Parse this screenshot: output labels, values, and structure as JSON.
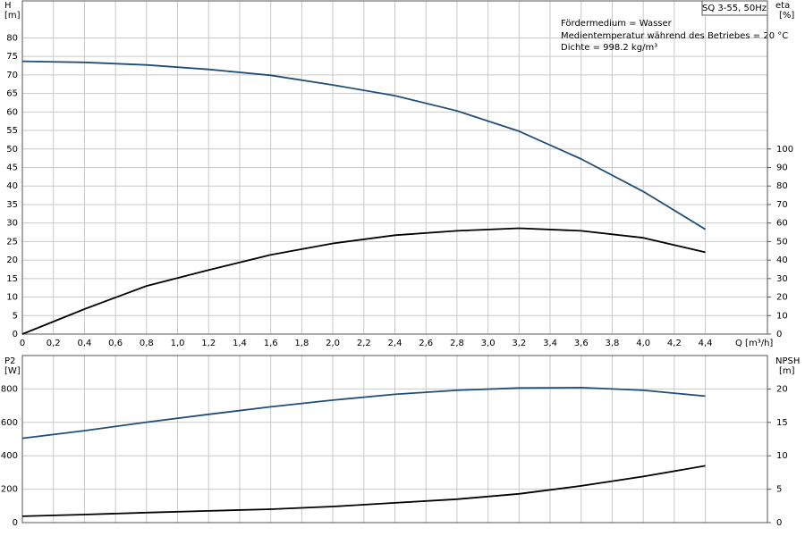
{
  "chart_data": [
    {
      "type": "line",
      "title": "SQ 3-55, 50Hz",
      "annotations": [
        "Fördermedium = Wasser",
        "Medientemperatur während des Betriebes = 20 °C",
        "Dichte = 998.2 kg/m³"
      ],
      "ylabel": "H",
      "yunit": "[m]",
      "y2label": "eta",
      "y2unit": "[%]",
      "xlabel": "Q [m³/h]",
      "x": [
        0,
        0.4,
        0.8,
        1.2,
        1.6,
        2.0,
        2.4,
        2.8,
        3.2,
        3.6,
        4.0,
        4.4
      ],
      "xlim": [
        0,
        4.8
      ],
      "xticks": [
        0,
        {
          "value": 0.2,
          "label": "0,2"
        },
        {
          "value": 0.4,
          "label": "0,4"
        },
        {
          "value": 0.6,
          "label": "0,6"
        },
        {
          "value": 0.8,
          "label": "0,8"
        },
        {
          "value": 1.0,
          "label": "1,0"
        },
        {
          "value": 1.2,
          "label": "1,2"
        },
        {
          "value": 1.4,
          "label": "1,4"
        },
        {
          "value": 1.6,
          "label": "1,6"
        },
        {
          "value": 1.8,
          "label": "1,8"
        },
        {
          "value": 2.0,
          "label": "2,0"
        },
        {
          "value": 2.2,
          "label": "2,2"
        },
        {
          "value": 2.4,
          "label": "2,4"
        },
        {
          "value": 2.6,
          "label": "2,6"
        },
        {
          "value": 2.8,
          "label": "2,8"
        },
        {
          "value": 3.0,
          "label": "3,0"
        },
        {
          "value": 3.2,
          "label": "3,2"
        },
        {
          "value": 3.4,
          "label": "3,4"
        },
        {
          "value": 3.6,
          "label": "3,6"
        },
        {
          "value": 3.8,
          "label": "3,8"
        },
        {
          "value": 4.0,
          "label": "4,0"
        },
        {
          "value": 4.2,
          "label": "4,2"
        },
        {
          "value": 4.4,
          "label": "4,4"
        }
      ],
      "ylim": [
        0,
        90
      ],
      "yticks": [
        0,
        5,
        10,
        15,
        20,
        25,
        30,
        35,
        40,
        45,
        50,
        55,
        60,
        65,
        70,
        75,
        80
      ],
      "y2lim": [
        0,
        180
      ],
      "y2ticks": [
        0,
        10,
        20,
        30,
        40,
        50,
        60,
        70,
        80,
        90,
        100
      ],
      "grid": true,
      "series": [
        {
          "color": "#1f4e79",
          "values": [
            73.7,
            73.4,
            72.7,
            71.5,
            69.9,
            67.3,
            64.4,
            60.3,
            54.8,
            47.3,
            38.5,
            28.3
          ]
        },
        {
          "color": "#000000",
          "axis": "y2",
          "values": [
            0,
            13.5,
            26,
            34.6,
            42.8,
            49,
            53.4,
            55.8,
            57.2,
            55.8,
            52,
            44.2
          ]
        }
      ]
    },
    {
      "type": "line",
      "ylabel": "P2",
      "yunit": "[W]",
      "y2label": "NPSH",
      "y2unit": "[m]",
      "x": [
        0,
        0.4,
        0.8,
        1.2,
        1.6,
        2.0,
        2.4,
        2.8,
        3.2,
        3.6,
        4.0,
        4.4
      ],
      "ylim": [
        0,
        1000
      ],
      "yticks": [
        0,
        200,
        400,
        600,
        800
      ],
      "y2lim": [
        0,
        25
      ],
      "y2ticks": [
        0,
        5,
        10,
        15,
        20
      ],
      "grid": true,
      "series": [
        {
          "color": "#1f4e79",
          "values": [
            505,
            550,
            601,
            648,
            693,
            733,
            768,
            792,
            806,
            808,
            792,
            757
          ]
        },
        {
          "color": "#000000",
          "axis": "y2",
          "values": [
            0.95,
            1.2,
            1.5,
            1.75,
            2.0,
            2.4,
            2.95,
            3.5,
            4.3,
            5.5,
            6.9,
            8.5
          ]
        }
      ]
    }
  ]
}
